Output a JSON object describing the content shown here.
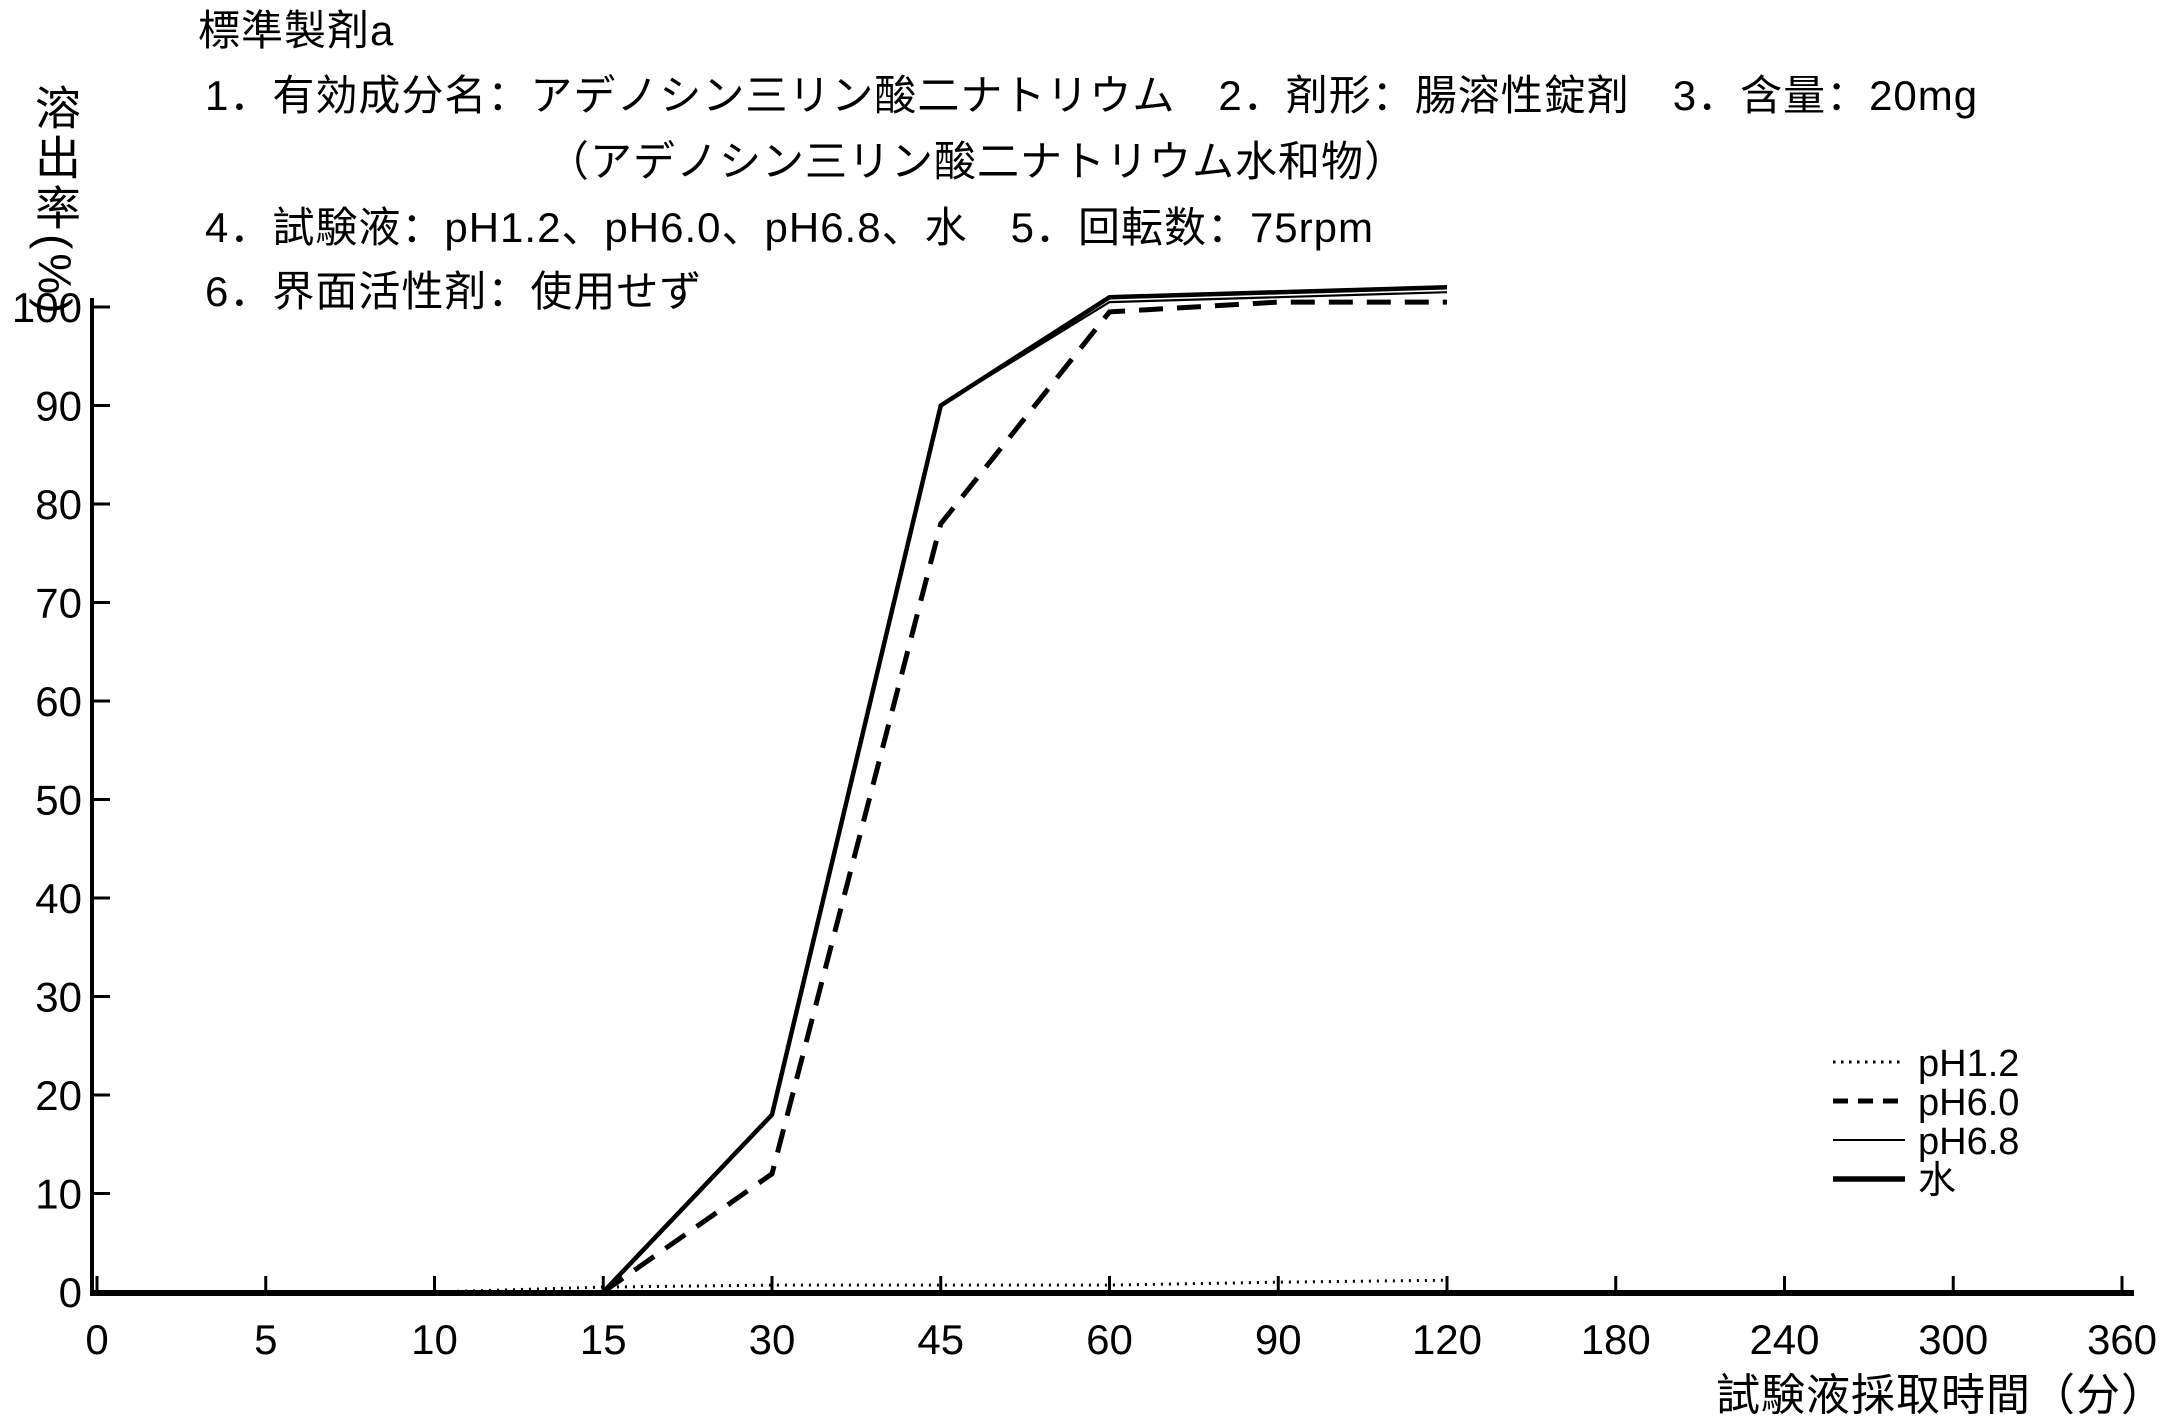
{
  "page": {
    "background": "#ffffff",
    "ink": "#000000"
  },
  "header": {
    "title": "標準製剤a",
    "lines": [
      "1．有効成分名：アデノシン三リン酸二ナトリウム　2．剤形：腸溶性錠剤　3．含量：20mg",
      "（アデノシン三リン酸二ナトリウム水和物）",
      "4．試験液：pH1.2、pH6.0、pH6.8、水　5．回転数：75rpm",
      "6．界面活性剤：使用せず"
    ]
  },
  "chart_data": {
    "type": "line",
    "title": "標準製剤a",
    "xlabel": "試験液採取時間（分）",
    "ylabel": "溶出率(%)",
    "x_ticks": [
      0,
      5,
      10,
      15,
      30,
      45,
      60,
      90,
      120,
      180,
      240,
      300,
      360
    ],
    "x_scale": "categorical (equal spacing between labeled ticks)",
    "y_ticks": [
      0,
      10,
      20,
      30,
      40,
      50,
      60,
      70,
      80,
      90,
      100
    ],
    "ylim": [
      0,
      100
    ],
    "grid": false,
    "legend_position": "inside lower-right",
    "series": [
      {
        "name": "pH1.2",
        "line_style": "dotted",
        "points": [
          [
            0,
            0
          ],
          [
            5,
            0
          ],
          [
            10,
            0
          ],
          [
            15,
            0.5
          ],
          [
            30,
            0.7
          ],
          [
            45,
            0.7
          ],
          [
            60,
            0.7
          ],
          [
            90,
            1
          ],
          [
            120,
            1.2
          ]
        ]
      },
      {
        "name": "pH6.0",
        "line_style": "dashed",
        "points": [
          [
            15,
            0
          ],
          [
            30,
            12
          ],
          [
            45,
            78
          ],
          [
            60,
            99.5
          ],
          [
            90,
            100.5
          ],
          [
            120,
            100.5
          ]
        ]
      },
      {
        "name": "pH6.8",
        "line_style": "solid-thin",
        "points": [
          [
            15,
            0
          ],
          [
            30,
            18
          ],
          [
            45,
            90
          ],
          [
            60,
            100.5
          ],
          [
            90,
            101
          ],
          [
            120,
            101.5
          ]
        ]
      },
      {
        "name": "水",
        "line_style": "solid-thick",
        "points": [
          [
            15,
            0
          ],
          [
            30,
            18
          ],
          [
            45,
            90
          ],
          [
            60,
            101
          ],
          [
            90,
            101.5
          ],
          [
            120,
            102
          ]
        ]
      }
    ]
  }
}
